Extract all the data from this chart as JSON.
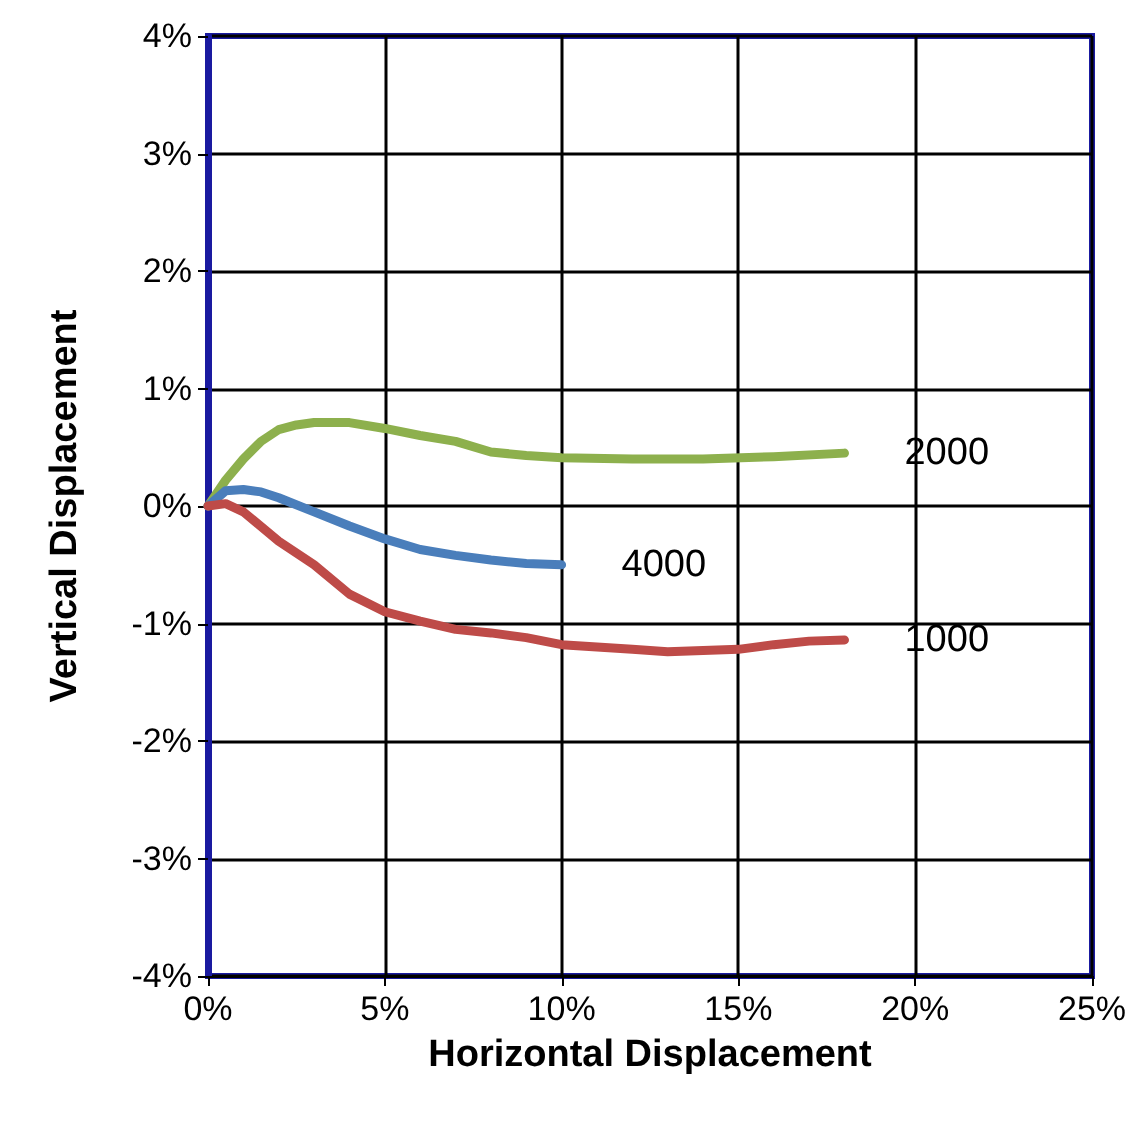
{
  "chart_data": {
    "type": "line",
    "xlabel": "Horizontal Displacement",
    "ylabel": "Vertical Displacement",
    "xlim": [
      0,
      25
    ],
    "xticks": [
      {
        "value": 0,
        "label": "0%"
      },
      {
        "value": 5,
        "label": "5%"
      },
      {
        "value": 10,
        "label": "10%"
      },
      {
        "value": 15,
        "label": "15%"
      },
      {
        "value": 20,
        "label": "20%"
      },
      {
        "value": 25,
        "label": "25%"
      }
    ],
    "ylim": [
      -4,
      4
    ],
    "yticks": [
      {
        "value": -4,
        "label": "-4%"
      },
      {
        "value": -3,
        "label": "-3%"
      },
      {
        "value": -2,
        "label": "-2%"
      },
      {
        "value": -1,
        "label": "-1%"
      },
      {
        "value": 0,
        "label": "0%"
      },
      {
        "value": 1,
        "label": "1%"
      },
      {
        "value": 2,
        "label": "2%"
      },
      {
        "value": 3,
        "label": "3%"
      },
      {
        "value": 4,
        "label": "4%"
      }
    ],
    "grid": true,
    "legend": false,
    "marker": "none",
    "line_style": "solid",
    "series": [
      {
        "name": "2000",
        "color": "#8db04d",
        "x": [
          0,
          0.5,
          1,
          1.5,
          2,
          2.5,
          3,
          4,
          5,
          6,
          7,
          8,
          9,
          10,
          12,
          14,
          16,
          18
        ],
        "values": [
          0,
          0.22,
          0.4,
          0.55,
          0.65,
          0.69,
          0.71,
          0.71,
          0.66,
          0.6,
          0.55,
          0.46,
          0.43,
          0.41,
          0.4,
          0.4,
          0.42,
          0.45
        ]
      },
      {
        "name": "4000",
        "color": "#4a7ebb",
        "x": [
          0,
          0.5,
          1,
          1.5,
          2,
          3,
          4,
          5,
          6,
          7,
          8,
          9,
          10
        ],
        "values": [
          0,
          0.13,
          0.14,
          0.12,
          0.07,
          -0.05,
          -0.17,
          -0.28,
          -0.37,
          -0.42,
          -0.46,
          -0.49,
          -0.5
        ]
      },
      {
        "name": "1000",
        "color": "#be4b48",
        "x": [
          0,
          0.5,
          1,
          2,
          3,
          4,
          5,
          6,
          7,
          8,
          9,
          10,
          11,
          12,
          13,
          14,
          15,
          16,
          17,
          18
        ],
        "values": [
          0,
          0.02,
          -0.05,
          -0.3,
          -0.5,
          -0.75,
          -0.9,
          -0.98,
          -1.05,
          -1.08,
          -1.12,
          -1.18,
          -1.2,
          -1.22,
          -1.24,
          -1.23,
          -1.22,
          -1.18,
          -1.15,
          -1.14
        ]
      }
    ]
  }
}
